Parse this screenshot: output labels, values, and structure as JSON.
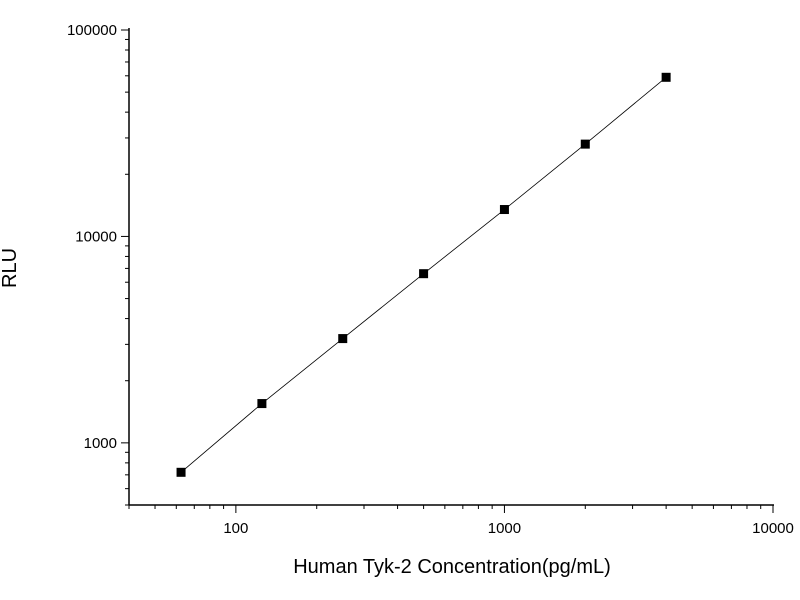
{
  "chart_data": {
    "type": "scatter",
    "title": "",
    "xlabel": "Human Tyk-2 Concentration(pg/mL)",
    "ylabel": "RLU",
    "x_scale": "log",
    "y_scale": "log",
    "xlim": [
      40,
      10000
    ],
    "ylim": [
      500,
      100000
    ],
    "x_ticks": [
      {
        "value": 100,
        "label": "100"
      },
      {
        "value": 1000,
        "label": "1000"
      },
      {
        "value": 10000,
        "label": "10000"
      }
    ],
    "y_ticks": [
      {
        "value": 1000,
        "label": "1000"
      },
      {
        "value": 10000,
        "label": "10000"
      },
      {
        "value": 100000,
        "label": "100000"
      }
    ],
    "grid": false,
    "legend": "none",
    "series": [
      {
        "marker": "square",
        "color": "#000000",
        "line": true,
        "x": [
          62.5,
          125,
          250,
          500,
          1000,
          2000,
          4000
        ],
        "y": [
          720,
          1550,
          3200,
          6600,
          13500,
          28000,
          59000
        ]
      }
    ]
  }
}
